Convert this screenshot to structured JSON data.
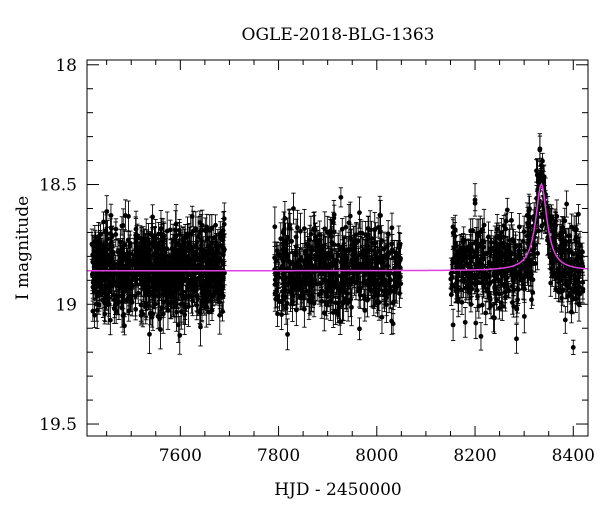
{
  "chart_data": {
    "type": "scatter",
    "title": "OGLE-2018-BLG-1363",
    "xlabel": "HJD - 2450000",
    "ylabel": "I magnitude",
    "xlim": [
      7410,
      8430
    ],
    "ylim": [
      19.55,
      17.98
    ],
    "y_inverted": true,
    "x_ticks": [
      7600,
      7800,
      8000,
      8200,
      8400
    ],
    "y_ticks": [
      18,
      18.5,
      19,
      19.5
    ],
    "y_tick_labels": [
      "18",
      "18.5",
      "19",
      "19.5"
    ],
    "grid": false,
    "legend": "none",
    "colors": {
      "points": "#000000",
      "model": "#e040e0",
      "frame": "#000000"
    },
    "series": [
      {
        "kind": "observations",
        "marker": "filled-circle-with-errorbars",
        "seasons": [
          {
            "x_range": [
              7420,
              7690
            ],
            "baseline_mag": 18.86,
            "scatter_mag": 0.09,
            "error_mag": 0.06,
            "approx_points": 900
          },
          {
            "x_range": [
              7790,
              8050
            ],
            "baseline_mag": 18.86,
            "scatter_mag": 0.09,
            "error_mag": 0.06,
            "approx_points": 550
          },
          {
            "x_range": [
              8150,
              8420
            ],
            "baseline_mag": 18.86,
            "scatter_mag": 0.09,
            "error_mag": 0.05,
            "approx_points": 600
          }
        ],
        "notable_points": [
          {
            "x": 8335,
            "y": 18.42
          },
          {
            "x": 8336,
            "y": 18.45
          },
          {
            "x": 8338,
            "y": 18.47
          },
          {
            "x": 8400,
            "y": 19.18
          }
        ]
      },
      {
        "kind": "model",
        "style": "line",
        "model_type": "point-lens microlensing",
        "t0": 8335,
        "baseline_mag": 18.86,
        "peak_mag": 18.5,
        "width_days": 14,
        "x_range": [
          7410,
          8430
        ]
      }
    ]
  }
}
